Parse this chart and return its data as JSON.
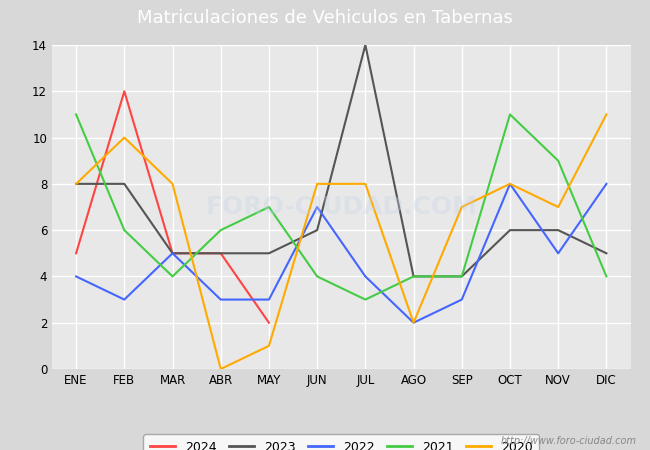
{
  "title": "Matriculaciones de Vehiculos en Tabernas",
  "title_bg_color": "#5b7fc4",
  "title_text_color": "#ffffff",
  "months": [
    "ENE",
    "FEB",
    "MAR",
    "ABR",
    "MAY",
    "JUN",
    "JUL",
    "AGO",
    "SEP",
    "OCT",
    "NOV",
    "DIC"
  ],
  "series": {
    "2024": {
      "color": "#ff4444",
      "data": [
        5,
        12,
        5,
        5,
        2,
        null,
        null,
        null,
        null,
        null,
        null,
        null
      ]
    },
    "2023": {
      "color": "#555555",
      "data": [
        8,
        8,
        5,
        5,
        5,
        6,
        14,
        4,
        4,
        6,
        6,
        5
      ]
    },
    "2022": {
      "color": "#4466ff",
      "data": [
        4,
        3,
        5,
        3,
        3,
        7,
        4,
        2,
        3,
        8,
        5,
        8
      ]
    },
    "2021": {
      "color": "#44cc44",
      "data": [
        11,
        6,
        4,
        6,
        7,
        4,
        3,
        4,
        4,
        11,
        9,
        4
      ]
    },
    "2020": {
      "color": "#ffaa00",
      "data": [
        8,
        10,
        8,
        0,
        1,
        8,
        8,
        2,
        7,
        8,
        7,
        11
      ]
    }
  },
  "ylim": [
    0,
    14
  ],
  "yticks": [
    0,
    2,
    4,
    6,
    8,
    10,
    12,
    14
  ],
  "watermark": "http://www.foro-ciudad.com",
  "outer_bg_color": "#d8d8d8",
  "plot_bg_color": "#e8e8e8",
  "grid_color": "#ffffff",
  "legend_years": [
    "2024",
    "2023",
    "2022",
    "2021",
    "2020"
  ]
}
